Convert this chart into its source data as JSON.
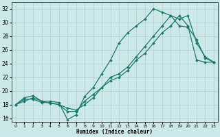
{
  "xlabel": "Humidex (Indice chaleur)",
  "bg_color": "#cce8e8",
  "grid_color": "#afd0d0",
  "line_color": "#1a7a6e",
  "xlim": [
    -0.5,
    23.5
  ],
  "ylim": [
    15.5,
    33.0
  ],
  "xticks": [
    0,
    1,
    2,
    3,
    4,
    5,
    6,
    7,
    8,
    9,
    10,
    11,
    12,
    13,
    14,
    15,
    16,
    17,
    18,
    19,
    20,
    21,
    22,
    23
  ],
  "yticks": [
    16,
    18,
    20,
    22,
    24,
    26,
    28,
    30,
    32
  ],
  "line1_x": [
    0,
    1,
    2,
    3,
    4,
    5,
    6,
    7,
    8,
    9,
    10,
    11,
    12,
    13,
    14,
    15,
    16,
    17,
    18,
    19,
    20,
    21,
    22,
    23
  ],
  "line1_y": [
    18.0,
    19.0,
    19.3,
    18.5,
    18.5,
    18.3,
    15.8,
    16.5,
    19.2,
    20.5,
    22.5,
    24.5,
    27.0,
    28.5,
    29.5,
    30.5,
    32.0,
    31.5,
    31.0,
    30.5,
    31.0,
    27.0,
    25.0,
    24.2
  ],
  "line2_x": [
    0,
    1,
    2,
    3,
    4,
    5,
    6,
    7,
    8,
    9,
    10,
    11,
    12,
    13,
    14,
    15,
    16,
    17,
    18,
    19,
    20,
    21,
    22,
    23
  ],
  "line2_y": [
    18.0,
    18.8,
    18.8,
    18.3,
    18.3,
    18.0,
    17.5,
    17.2,
    18.0,
    19.0,
    20.5,
    22.0,
    22.5,
    23.5,
    25.0,
    26.5,
    28.0,
    29.5,
    31.0,
    29.5,
    29.3,
    27.5,
    24.8,
    24.2
  ],
  "line3_x": [
    0,
    1,
    2,
    3,
    4,
    5,
    6,
    7,
    8,
    9,
    10,
    11,
    12,
    13,
    14,
    15,
    16,
    17,
    18,
    19,
    20,
    21,
    22,
    23
  ],
  "line3_y": [
    18.0,
    18.5,
    19.0,
    18.5,
    18.2,
    18.0,
    17.0,
    17.0,
    18.5,
    19.5,
    20.5,
    21.5,
    22.0,
    23.0,
    24.5,
    25.5,
    27.0,
    28.5,
    29.5,
    31.0,
    29.5,
    24.5,
    24.2,
    24.2
  ]
}
